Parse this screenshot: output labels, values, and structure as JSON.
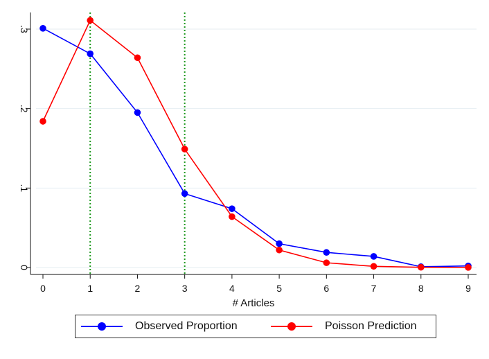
{
  "chart_data": {
    "type": "line",
    "xlabel": "# Articles",
    "ylabel": "",
    "x": [
      0,
      1,
      2,
      3,
      4,
      5,
      6,
      7,
      8,
      9
    ],
    "xlim": [
      0,
      9
    ],
    "ylim": [
      0,
      0.3
    ],
    "x_ticks": [
      0,
      1,
      2,
      3,
      4,
      5,
      6,
      7,
      8,
      9
    ],
    "y_ticks": [
      0,
      0.1,
      0.2,
      0.3
    ],
    "y_tick_labels": [
      "0",
      ".1",
      ".2",
      ".3"
    ],
    "grid": "horizontal",
    "legend_position": "bottom",
    "vertical_reference_lines": [
      1,
      3
    ],
    "reference_line_color": "#1f9a1f",
    "series": [
      {
        "name": "Observed Proportion",
        "color": "#0000ff",
        "values": [
          0.301,
          0.269,
          0.195,
          0.093,
          0.074,
          0.03,
          0.019,
          0.014,
          0.001,
          0.002
        ]
      },
      {
        "name": "Poisson Prediction",
        "color": "#ff0000",
        "values": [
          0.184,
          0.311,
          0.264,
          0.149,
          0.064,
          0.022,
          0.006,
          0.0015,
          0.0003,
          0.0001
        ]
      }
    ]
  }
}
